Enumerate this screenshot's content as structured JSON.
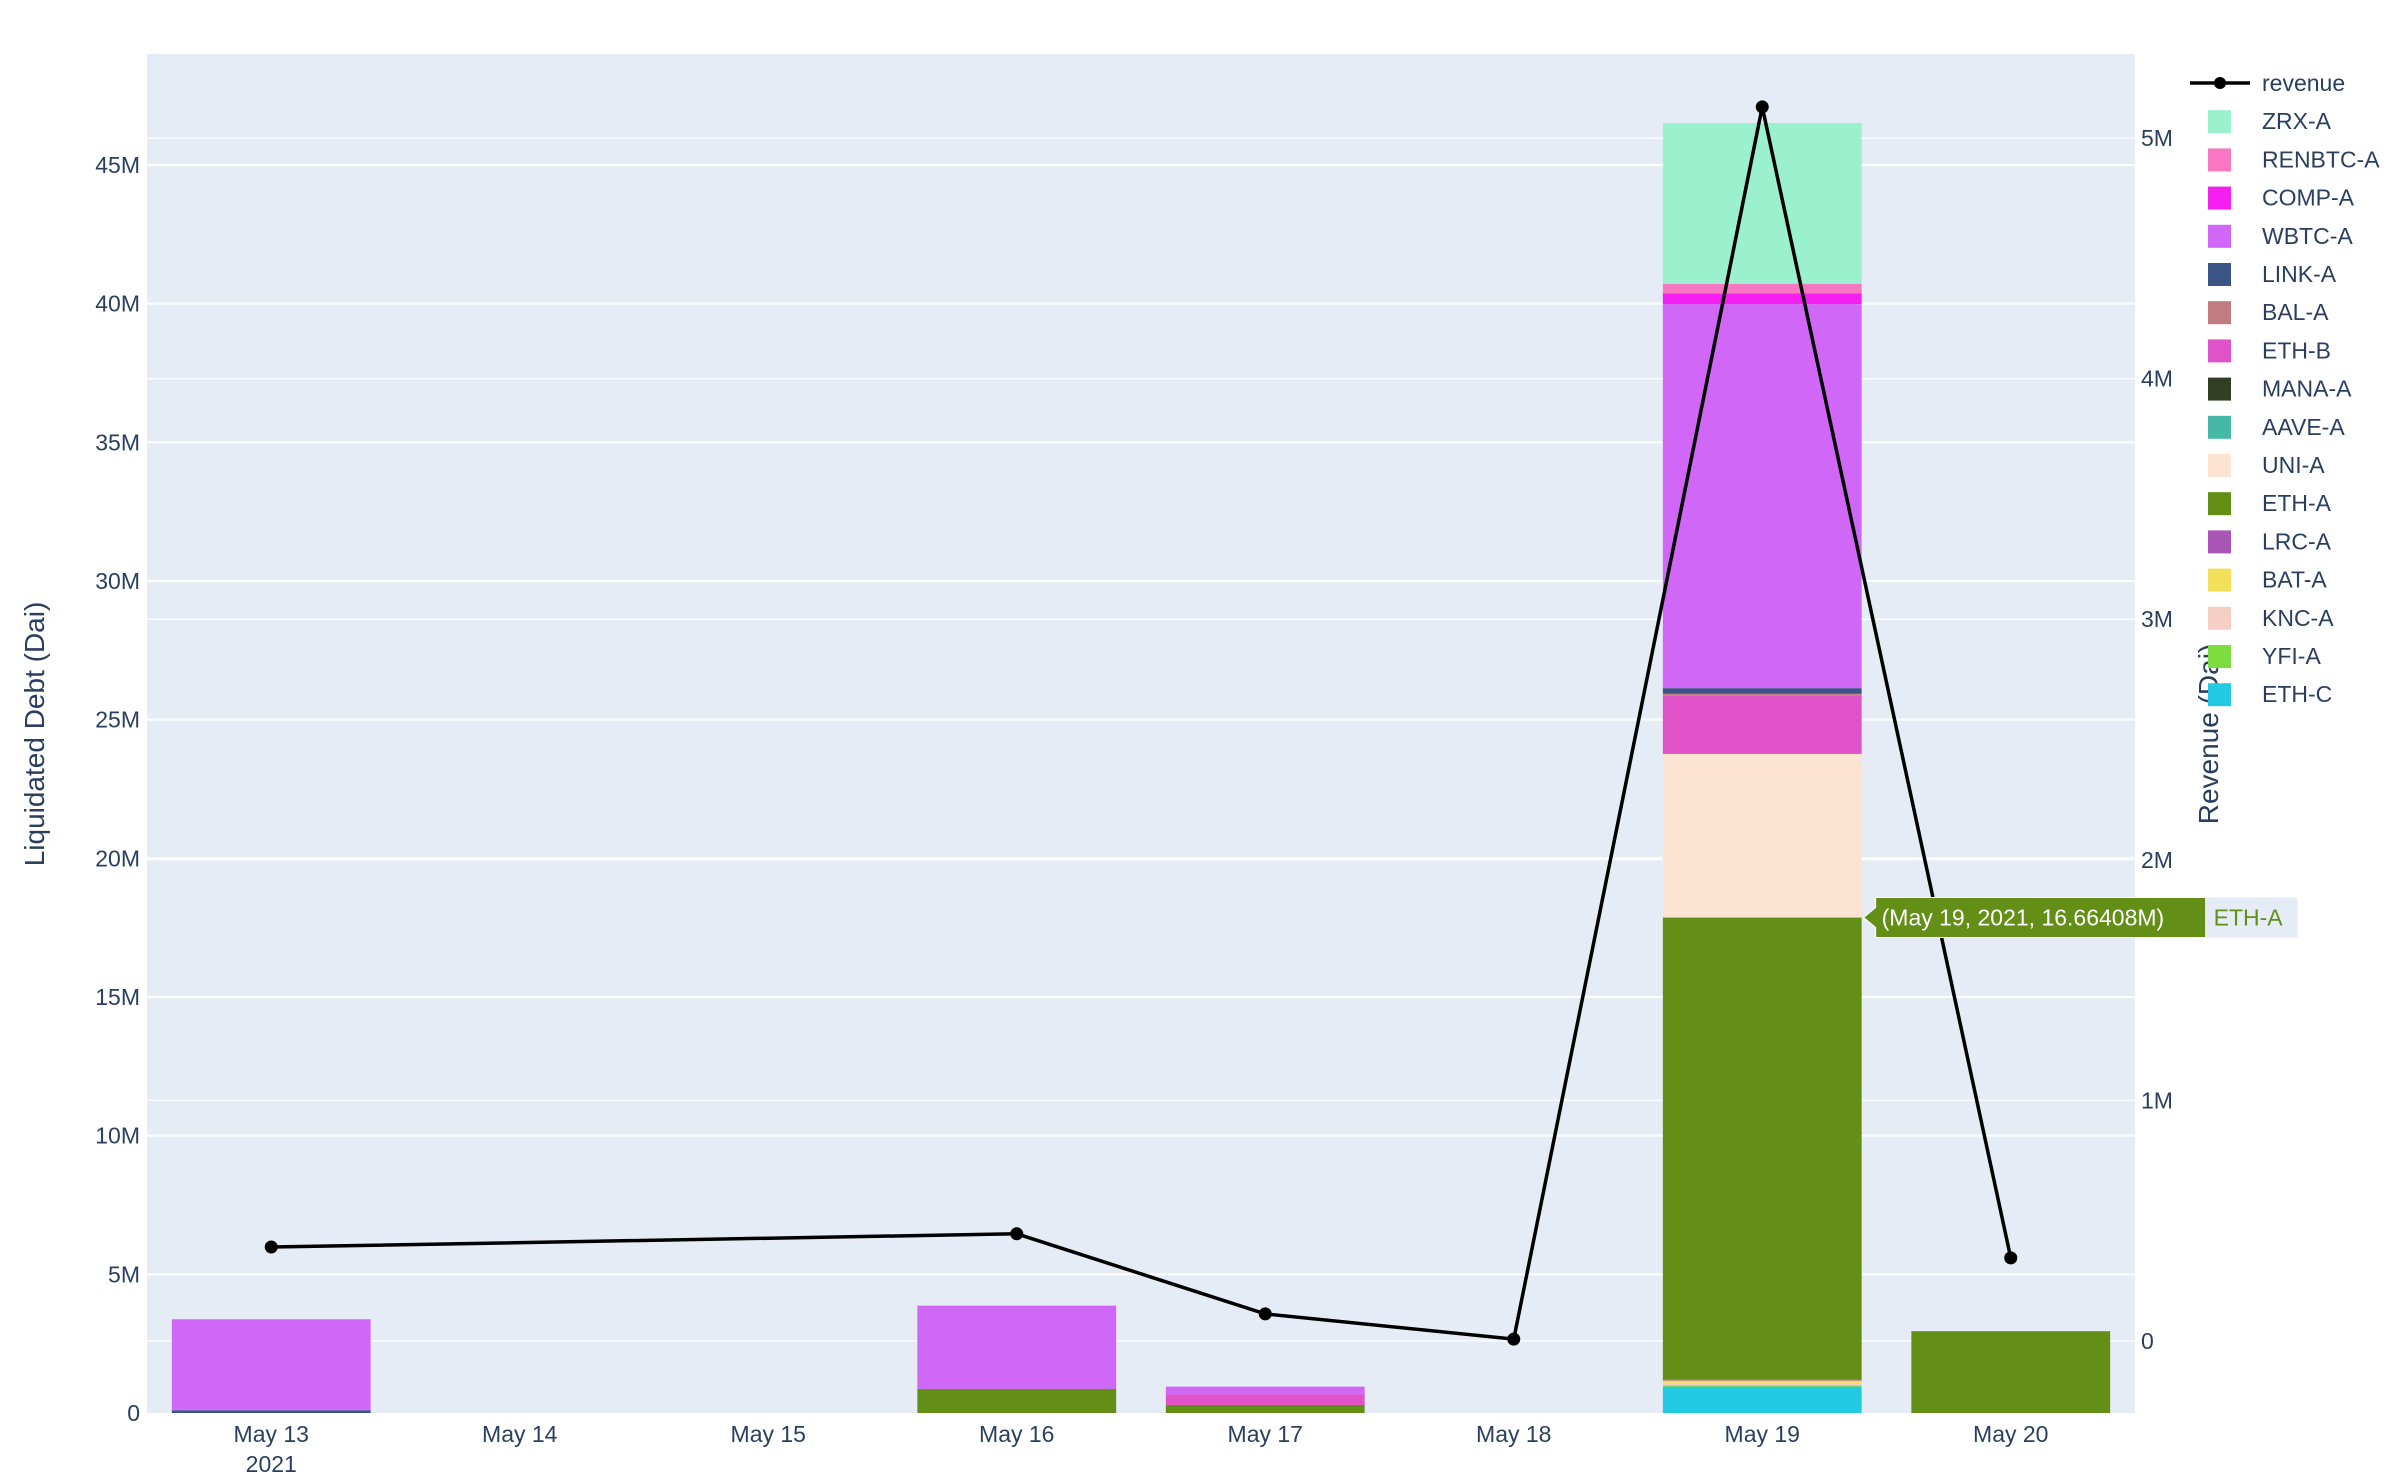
{
  "chart_data": {
    "type": "bar",
    "barmode": "stack",
    "categories": [
      "2021-05-13",
      "2021-05-14",
      "2021-05-15",
      "2021-05-16",
      "2021-05-17",
      "2021-05-18",
      "2021-05-19",
      "2021-05-20"
    ],
    "tick_labels": [
      "May 13",
      "May 14",
      "May 15",
      "May 16",
      "May 17",
      "May 18",
      "May 19",
      "May 20"
    ],
    "tick_year": "2021",
    "ylabel": "Liquidated Debt (Dai)",
    "y2label": "Revenue (Dai)",
    "ylim": [
      0,
      49000000
    ],
    "y_ticks": [
      0,
      5000000,
      10000000,
      15000000,
      20000000,
      25000000,
      30000000,
      35000000,
      40000000,
      45000000
    ],
    "y_tick_labels": [
      "0",
      "5M",
      "10M",
      "15M",
      "20M",
      "25M",
      "30M",
      "35M",
      "40M",
      "45M"
    ],
    "y2lim": [
      -300000,
      5350000
    ],
    "y2_ticks": [
      0,
      1000000,
      2000000,
      3000000,
      4000000,
      5000000
    ],
    "y2_tick_labels": [
      "0",
      "1M",
      "2M",
      "3M",
      "4M",
      "5M"
    ],
    "legend_position": "top-right",
    "grid": true,
    "series": [
      {
        "name": "ETH-C",
        "color": "#22cbe3",
        "values": [
          0,
          0,
          0,
          0,
          0,
          0,
          950000,
          0
        ]
      },
      {
        "name": "YFI-A",
        "color": "#7ddc3e",
        "values": [
          0,
          0,
          0,
          0,
          0,
          0,
          50000,
          0
        ]
      },
      {
        "name": "KNC-A",
        "color": "#f6cfc4",
        "values": [
          0,
          0,
          0,
          0,
          0,
          0,
          50000,
          0
        ]
      },
      {
        "name": "BAT-A",
        "color": "#f2e05a",
        "values": [
          0,
          0,
          0,
          0,
          0,
          0,
          120000,
          0
        ]
      },
      {
        "name": "LRC-A",
        "color": "#a855b5",
        "values": [
          0,
          0,
          0,
          0,
          0,
          0,
          30000,
          0
        ]
      },
      {
        "name": "ETH-A",
        "color": "#638f16",
        "values": [
          0,
          0,
          0,
          870000,
          290000,
          0,
          16664080,
          2950000
        ]
      },
      {
        "name": "AAVE-A",
        "color": "#45b8a8",
        "values": [
          0,
          0,
          0,
          0,
          0,
          0,
          0,
          0
        ]
      },
      {
        "name": "UNI-A",
        "color": "#fce3d2",
        "values": [
          0,
          0,
          0,
          0,
          0,
          0,
          5900000,
          0
        ]
      },
      {
        "name": "MANA-A",
        "color": "#323f22",
        "values": [
          0,
          0,
          0,
          0,
          0,
          0,
          0,
          0
        ]
      },
      {
        "name": "ETH-B",
        "color": "#e053c8",
        "values": [
          0,
          0,
          0,
          0,
          380000,
          0,
          2100000,
          0
        ]
      },
      {
        "name": "BAL-A",
        "color": "#c07c7f",
        "values": [
          0,
          0,
          0,
          0,
          0,
          0,
          70000,
          0
        ]
      },
      {
        "name": "LINK-A",
        "color": "#3a5486",
        "values": [
          100000,
          0,
          0,
          0,
          0,
          0,
          200000,
          0
        ]
      },
      {
        "name": "WBTC-A",
        "color": "#d067f7",
        "values": [
          3280000,
          0,
          0,
          3000000,
          280000,
          0,
          13850000,
          0
        ]
      },
      {
        "name": "COMP-A",
        "color": "#f41ff0",
        "values": [
          0,
          0,
          0,
          0,
          0,
          0,
          380000,
          0
        ]
      },
      {
        "name": "RENBTC-A",
        "color": "#f777c2",
        "values": [
          0,
          0,
          0,
          0,
          0,
          0,
          350000,
          0
        ]
      },
      {
        "name": "ZRX-A",
        "color": "#9bf0cd",
        "values": [
          0,
          0,
          0,
          0,
          0,
          0,
          5800000,
          0
        ]
      }
    ],
    "line": {
      "name": "revenue",
      "color": "#000000",
      "axis": "right",
      "x": [
        "2021-05-13",
        "2021-05-16",
        "2021-05-17",
        "2021-05-18",
        "2021-05-19",
        "2021-05-20"
      ],
      "values": [
        390000,
        445000,
        112000,
        7000,
        5130000,
        345000
      ]
    },
    "legend_order": [
      "revenue",
      "ZRX-A",
      "RENBTC-A",
      "COMP-A",
      "WBTC-A",
      "LINK-A",
      "BAL-A",
      "ETH-B",
      "MANA-A",
      "AAVE-A",
      "UNI-A",
      "ETH-A",
      "LRC-A",
      "BAT-A",
      "KNC-A",
      "YFI-A",
      "ETH-C"
    ],
    "hover": {
      "series": "ETH-A",
      "category": "2021-05-19",
      "text": "(May 19, 2021, 16.66408M)",
      "series_label": "ETH-A"
    }
  }
}
